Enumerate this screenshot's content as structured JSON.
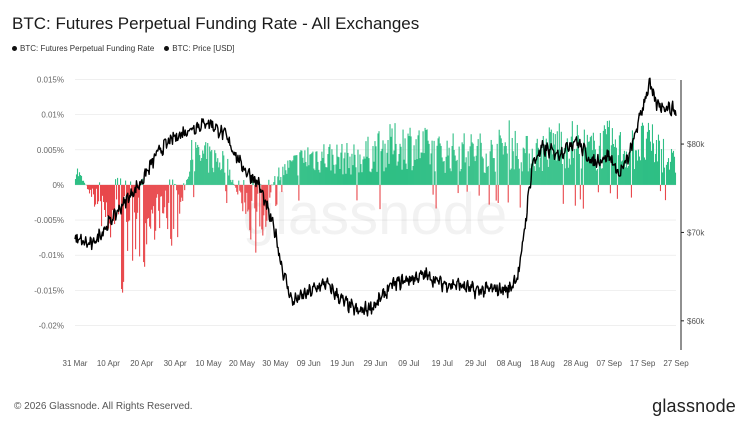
{
  "header": {
    "title": "BTC: Futures Perpetual Funding Rate - All Exchanges"
  },
  "legend": [
    {
      "label": "BTC: Futures Perpetual Funding Rate",
      "color": "#111111"
    },
    {
      "label": "BTC: Price [USD]",
      "color": "#111111"
    }
  ],
  "watermark": "glassnode",
  "footer": {
    "copyright": "© 2026 Glassnode. All Rights Reserved.",
    "logo": "glassnode"
  },
  "colors": {
    "positive": "#2fbf85",
    "negative": "#e8474b",
    "price": "#000000",
    "grid": "#e6e6e6"
  },
  "chart_data": {
    "type": "bar",
    "x_tick_labels": [
      "31 Mar",
      "10 Apr",
      "20 Apr",
      "30 Apr",
      "10 May",
      "20 May",
      "30 May",
      "09 Jun",
      "19 Jun",
      "29 Jun",
      "09 Jul",
      "19 Jul",
      "29 Jul",
      "08 Aug",
      "18 Aug",
      "28 Aug",
      "07 Sep",
      "17 Sep",
      "27 Sep"
    ],
    "y_left": {
      "ticks": [
        0.015,
        0.01,
        0.005,
        0,
        -0.005,
        -0.01,
        -0.015,
        -0.02
      ],
      "tick_labels": [
        "0.015%",
        "0.01%",
        "0.005%",
        "0%",
        "-0.005%",
        "-0.01%",
        "-0.015%",
        "-0.02%"
      ],
      "unit": "%",
      "range": [
        -0.0235,
        0.0155
      ]
    },
    "y_right": {
      "ticks": [
        80000,
        70000,
        60000
      ],
      "tick_labels": [
        "$80k",
        "$70k",
        "$60k"
      ],
      "range": [
        56700,
        87700
      ]
    },
    "series": [
      {
        "name": "BTC: Futures Perpetual Funding Rate",
        "type": "bar",
        "anchor_day": [
          0,
          5,
          10,
          15,
          20,
          25,
          30,
          35,
          40,
          45,
          50,
          55,
          60,
          65,
          70,
          75,
          80,
          85,
          90,
          95,
          100,
          105,
          110,
          115,
          120,
          125,
          130,
          135,
          140,
          145,
          150,
          155,
          160,
          165,
          170,
          175,
          180
        ],
        "anchor_value": [
          0.0035,
          -0.002,
          -0.009,
          -0.018,
          -0.013,
          -0.006,
          -0.01,
          0.006,
          0.0055,
          0.005,
          -0.004,
          -0.012,
          0.002,
          0.004,
          0.006,
          0.006,
          0.0055,
          0.0055,
          0.007,
          0.008,
          0.0085,
          0.0075,
          0.0065,
          0.007,
          0.007,
          0.0065,
          0.0085,
          0.0065,
          0.007,
          0.009,
          0.0085,
          0.007,
          0.0085,
          0.007,
          0.0085,
          0.0075,
          0.004
        ]
      },
      {
        "name": "BTC: Price [USD]",
        "type": "line",
        "anchor_day": [
          0,
          5,
          10,
          15,
          20,
          25,
          30,
          35,
          40,
          45,
          50,
          55,
          60,
          62,
          65,
          70,
          75,
          80,
          85,
          90,
          95,
          100,
          105,
          110,
          115,
          120,
          125,
          130,
          133,
          135,
          137,
          140,
          145,
          150,
          155,
          160,
          163,
          166,
          170,
          172,
          174,
          180
        ],
        "anchor_value": [
          69200,
          68600,
          71000,
          73500,
          75800,
          79200,
          80800,
          81800,
          82500,
          81000,
          77500,
          75500,
          70000,
          66000,
          62200,
          63200,
          64300,
          62300,
          61000,
          61800,
          64100,
          64700,
          65200,
          64200,
          64100,
          63400,
          63600,
          63500,
          65500,
          71500,
          77800,
          79500,
          78900,
          80500,
          77900,
          78700,
          76500,
          78700,
          84200,
          86800,
          84600,
          83800
        ]
      }
    ],
    "x_range_days": [
      0,
      180
    ]
  }
}
